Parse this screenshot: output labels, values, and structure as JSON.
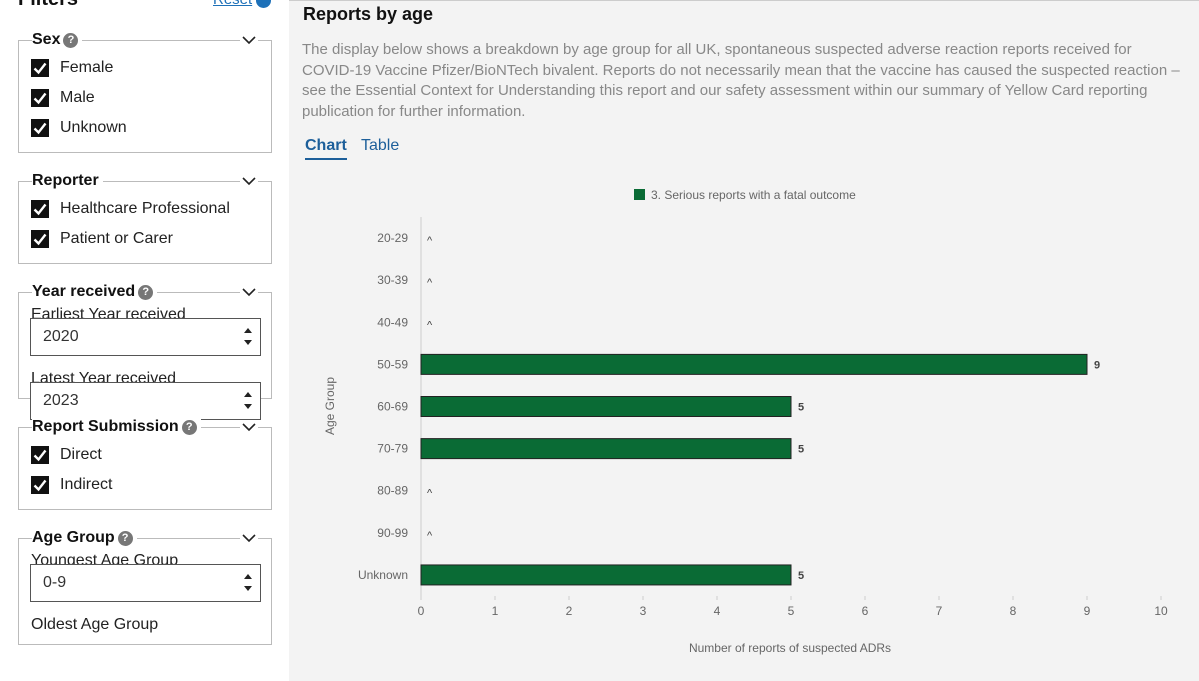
{
  "filters": {
    "title": "Filters",
    "reset": "Reset",
    "groups": [
      {
        "legend": "Sex",
        "help": true,
        "options": [
          "Female",
          "Male",
          "Unknown"
        ]
      },
      {
        "legend": "Reporter",
        "help": false,
        "options": [
          "Healthcare Professional",
          "Patient or Carer"
        ]
      },
      {
        "legend": "Year received",
        "help": true,
        "selects": [
          {
            "label": "Earliest Year received",
            "value": "2020"
          },
          {
            "label": "Latest Year received",
            "value": "2023"
          }
        ]
      },
      {
        "legend": "Report Submission",
        "help": true,
        "options": [
          "Direct",
          "Indirect"
        ]
      },
      {
        "legend": "Age Group",
        "help": true,
        "selects": [
          {
            "label": "Youngest Age Group",
            "value": "0-9"
          },
          {
            "label": "Oldest Age Group"
          }
        ]
      }
    ]
  },
  "main": {
    "heading": "Reports by age",
    "description": "The display below shows a breakdown by age group for all UK, spontaneous suspected adverse reaction reports received for COVID-19 Vaccine Pfizer/BioNTech bivalent. Reports do not necessarily mean that the vaccine has caused the suspected reaction – see the Essential Context for Understanding this report and our safety assessment within our summary of Yellow Card reporting publication for further information.",
    "tabs": [
      "Chart",
      "Table"
    ]
  },
  "chart_data": {
    "type": "bar",
    "orientation": "horizontal",
    "categories": [
      "20-29",
      "30-39",
      "40-49",
      "50-59",
      "60-69",
      "70-79",
      "80-89",
      "90-99",
      "Unknown"
    ],
    "series": [
      {
        "name": "3. Serious reports with a fatal outcome",
        "color": "#0a6b35",
        "values": [
          null,
          null,
          null,
          9,
          5,
          5,
          null,
          null,
          5
        ],
        "value_labels": [
          "^",
          "^",
          "^",
          "9",
          "5",
          "5",
          "^",
          "^",
          "5"
        ]
      }
    ],
    "xlim": [
      0,
      10
    ],
    "xticks": [
      0,
      1,
      2,
      3,
      4,
      5,
      6,
      7,
      8,
      9,
      10
    ],
    "xlabel": "Number of reports of suspected ADRs",
    "ylabel": "Age Group"
  }
}
